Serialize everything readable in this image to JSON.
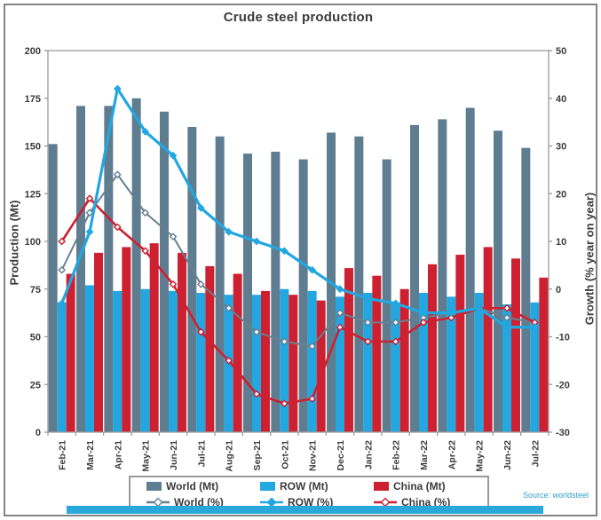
{
  "title": "Crude steel production",
  "axes": {
    "left": {
      "label": "Production (Mt)",
      "ticks": [
        0,
        25,
        50,
        75,
        100,
        125,
        150,
        175,
        200
      ]
    },
    "right": {
      "label": "Growth (% year on year)",
      "ticks": [
        -30,
        -20,
        -10,
        0,
        10,
        20,
        30,
        40,
        50
      ]
    }
  },
  "source_note": "Source: worldsteel",
  "colors": {
    "world_bar": "#5e7d91",
    "row_bar": "#22a7e0",
    "china_bar": "#cd2030",
    "world_line": "#68808f",
    "row_line": "#22a7e0",
    "china_line": "#cd2030",
    "accent_strip": "#29a8dc",
    "source_text": "#2f9dc4",
    "axis_text": "#3b3b3b",
    "plot_border": "#9a9a9a"
  },
  "legend": {
    "items": [
      {
        "label": "World (Mt)",
        "type": "bar",
        "color_key": "world_bar"
      },
      {
        "label": "ROW (Mt)",
        "type": "bar",
        "color_key": "row_bar"
      },
      {
        "label": "China (Mt)",
        "type": "bar",
        "color_key": "china_bar"
      },
      {
        "label": "World (%)",
        "type": "line",
        "color_key": "world_line"
      },
      {
        "label": "ROW (%)",
        "type": "line",
        "color_key": "row_line"
      },
      {
        "label": "China (%)",
        "type": "line",
        "color_key": "china_line"
      }
    ]
  },
  "chart_data": {
    "type": "combo-bar-line",
    "title": "Crude steel production",
    "categories": [
      "Feb-21",
      "Mar-21",
      "Apr-21",
      "May-21",
      "Jun-21",
      "Jul-21",
      "Aug-21",
      "Sep-21",
      "Oct-21",
      "Nov-21",
      "Dec-21",
      "Jan-22",
      "Feb-22",
      "Mar-22",
      "Apr-22",
      "May-22",
      "Jun-22",
      "Jul-22"
    ],
    "left_axis": {
      "label": "Production (Mt)",
      "min": 0,
      "max": 200,
      "step": 25
    },
    "right_axis": {
      "label": "Growth (% year on year)",
      "min": -30,
      "max": 50,
      "step": 10
    },
    "grid": false,
    "legend_position": "bottom",
    "bar_series": [
      {
        "name": "World (Mt)",
        "axis": "left",
        "color": "#5e7d91",
        "values": [
          151,
          171,
          171,
          175,
          168,
          160,
          155,
          146,
          147,
          143,
          157,
          155,
          143,
          161,
          164,
          170,
          158,
          149
        ]
      },
      {
        "name": "ROW (Mt)",
        "axis": "left",
        "color": "#22a7e0",
        "values": [
          68,
          77,
          74,
          75,
          74,
          73,
          72,
          72,
          75,
          74,
          71,
          73,
          68,
          73,
          71,
          73,
          67,
          68
        ]
      },
      {
        "name": "China (Mt)",
        "axis": "left",
        "color": "#cd2030",
        "values": [
          83,
          94,
          97,
          99,
          94,
          87,
          83,
          74,
          72,
          69,
          86,
          82,
          75,
          88,
          93,
          97,
          91,
          81
        ]
      }
    ],
    "line_series": [
      {
        "name": "World (%)",
        "axis": "right",
        "color": "#68808f",
        "marker": "diamond-open",
        "width": 2,
        "values": [
          4,
          16,
          24,
          16,
          11,
          1,
          -4,
          -9,
          -11,
          -12,
          -5,
          -7,
          -7,
          -6,
          -5,
          -4,
          -6,
          -7
        ]
      },
      {
        "name": "China (%)",
        "axis": "right",
        "color": "#cd2030",
        "marker": "diamond-open",
        "width": 2.6,
        "values": [
          10,
          19,
          13,
          8,
          1,
          -9,
          -15,
          -22,
          -24,
          -23,
          -8,
          -11,
          -11,
          -7,
          -6,
          -4,
          -4,
          -7
        ]
      },
      {
        "name": "ROW (%)",
        "axis": "right",
        "color": "#22a7e0",
        "marker": "diamond-filled",
        "width": 3.2,
        "values": [
          -3,
          12,
          42,
          33,
          28,
          17,
          12,
          10,
          8,
          4,
          0,
          -2,
          -3,
          -5,
          -5,
          -4,
          -8,
          -8
        ]
      }
    ]
  }
}
